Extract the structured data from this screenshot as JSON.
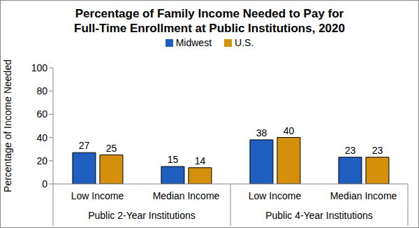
{
  "chart_data": {
    "type": "bar",
    "title": "Percentage of Family Income Needed to Pay for\nFull-Time Enrollment at Public Institutions, 2020",
    "y_label": "Percentage of Income Needed",
    "categories": [
      "Low Income",
      "Median Income",
      "Low Income",
      "Median Income"
    ],
    "category_groups": [
      "Public 2-Year Institutions",
      "Public 4-Year Institutions"
    ],
    "series": [
      {
        "name": "Midwest",
        "color": "#1f5fbf",
        "values": [
          27,
          15,
          38,
          23
        ]
      },
      {
        "name": "U.S.",
        "color": "#d4900a",
        "values": [
          25,
          14,
          40,
          23
        ]
      }
    ],
    "ylim": [
      0,
      100
    ],
    "yticks": [
      0,
      20,
      40,
      60,
      80,
      100
    ],
    "grid": false,
    "legend": "top",
    "data_labels": true
  }
}
